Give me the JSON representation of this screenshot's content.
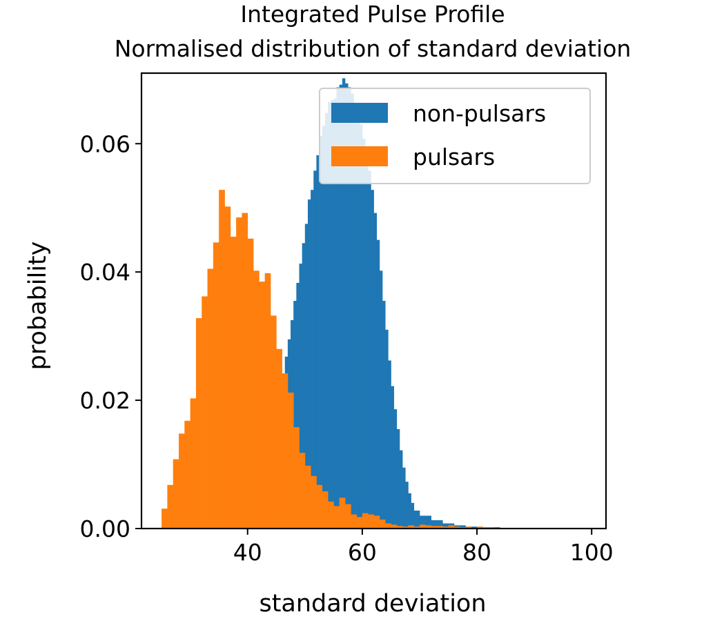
{
  "chart_data": {
    "type": "bar",
    "title": "Integrated Pulse Profile",
    "subtitle": "Normalised distribution of standard deviation",
    "xlabel": "standard deviation",
    "ylabel": "probability",
    "xlim": [
      21.5,
      102.5
    ],
    "ylim": [
      0,
      0.071
    ],
    "x_ticks": [
      40,
      60,
      80,
      100
    ],
    "x_tick_labels": [
      "40",
      "60",
      "80",
      "100"
    ],
    "y_ticks": [
      0,
      0.02,
      0.04,
      0.06
    ],
    "y_tick_labels": [
      "0.00",
      "0.02",
      "0.04",
      "0.06"
    ],
    "grid": false,
    "legend_position": "top-right",
    "series": [
      {
        "name": "non-pulsars",
        "color": "#1f77b4",
        "bin_edges": [
          32.0,
          32.5,
          33.0,
          33.5,
          34.0,
          34.5,
          35.0,
          35.5,
          36.0,
          36.5,
          37.0,
          37.5,
          38.0,
          38.5,
          39.0,
          39.5,
          40.0,
          40.5,
          41.0,
          41.5,
          42.0,
          42.5,
          43.0,
          43.5,
          44.0,
          44.5,
          45.0,
          45.5,
          46.0,
          46.5,
          47.0,
          47.5,
          48.0,
          48.5,
          49.0,
          49.5,
          50.0,
          50.5,
          51.0,
          51.5,
          52.0,
          52.5,
          53.0,
          53.5,
          54.0,
          54.5,
          55.0,
          55.5,
          56.0,
          56.5,
          57.0,
          57.5,
          58.0,
          58.5,
          59.0,
          59.5,
          60.0,
          60.5,
          61.0,
          61.5,
          62.0,
          62.5,
          63.0,
          63.5,
          64.0,
          64.5,
          65.0,
          65.5,
          66.0,
          66.5,
          67.0,
          67.5,
          68.0,
          68.5,
          69.0,
          70.0,
          72.0,
          74.0,
          76.0,
          78.0,
          80.0,
          82.0,
          84.0,
          86.0,
          88.0,
          90.0,
          92.0,
          94.0,
          96.0,
          98.0,
          99.0
        ],
        "values": [
          0.0005,
          0.0007,
          0.0009,
          0.001,
          0.0012,
          0.0014,
          0.0016,
          0.0018,
          0.002,
          0.0022,
          0.0025,
          0.0028,
          0.0031,
          0.0035,
          0.004,
          0.0046,
          0.0052,
          0.0058,
          0.0066,
          0.0075,
          0.0086,
          0.0099,
          0.0112,
          0.0128,
          0.0146,
          0.0166,
          0.019,
          0.0215,
          0.024,
          0.0268,
          0.0295,
          0.0325,
          0.0355,
          0.0383,
          0.0413,
          0.0445,
          0.0475,
          0.0513,
          0.0528,
          0.0558,
          0.0582,
          0.0612,
          0.0628,
          0.0648,
          0.0665,
          0.0668,
          0.067,
          0.0688,
          0.0692,
          0.0702,
          0.0694,
          0.0688,
          0.0678,
          0.066,
          0.0645,
          0.063,
          0.0608,
          0.0586,
          0.0558,
          0.0528,
          0.0492,
          0.045,
          0.0402,
          0.0355,
          0.031,
          0.0262,
          0.0222,
          0.0186,
          0.0155,
          0.0122,
          0.0095,
          0.0073,
          0.0055,
          0.004,
          0.0028,
          0.002,
          0.0013,
          0.0008,
          0.0005,
          0.0003,
          0.0002,
          0.0002,
          0.0001,
          0.0001,
          0.0001,
          0.0001,
          5e-05,
          5e-05,
          3e-05,
          2e-05
        ],
        "note_values_monotone_in_time": false
      },
      {
        "name": "pulsars",
        "color": "#ff7f0e",
        "bin_edges": [
          25.0,
          26.0,
          27.0,
          28.0,
          29.0,
          30.0,
          31.0,
          32.0,
          33.0,
          34.0,
          35.0,
          36.0,
          37.0,
          38.0,
          39.0,
          40.0,
          41.0,
          42.0,
          43.0,
          44.0,
          45.0,
          46.0,
          47.0,
          48.0,
          49.0,
          50.0,
          51.0,
          52.0,
          53.0,
          54.0,
          55.0,
          56.0,
          57.0,
          58.0,
          59.0,
          60.0,
          61.0,
          62.0,
          63.0,
          64.0,
          65.0,
          66.0,
          67.0,
          68.0,
          69.0,
          70.0,
          71.0,
          72.0,
          73.0,
          74.0,
          75.0,
          76.0,
          77.0,
          78.0,
          79.0,
          80.0,
          81.0,
          82.0,
          83.0,
          84.0,
          85.0,
          86.0
        ],
        "values": [
          0.0031,
          0.0068,
          0.0108,
          0.0148,
          0.0168,
          0.0203,
          0.0328,
          0.0362,
          0.0405,
          0.0446,
          0.0528,
          0.0502,
          0.0455,
          0.0485,
          0.0492,
          0.0452,
          0.0402,
          0.0385,
          0.0398,
          0.0332,
          0.028,
          0.0242,
          0.0212,
          0.0158,
          0.0118,
          0.0098,
          0.0082,
          0.0068,
          0.0058,
          0.0042,
          0.0035,
          0.0048,
          0.0038,
          0.0022,
          0.0018,
          0.0024,
          0.0022,
          0.002,
          0.0014,
          0.0008,
          0.0006,
          0.0004,
          0.0003,
          0.0005,
          0.0003,
          0.0006,
          0.0005,
          0.0004,
          0.0004,
          0.0003,
          0.0005,
          0.0003,
          0.0002,
          0.0003,
          0.0001,
          0.0003,
          0.0002,
          0.0002,
          0.0001,
          0.0001,
          0.0001
        ]
      }
    ]
  }
}
